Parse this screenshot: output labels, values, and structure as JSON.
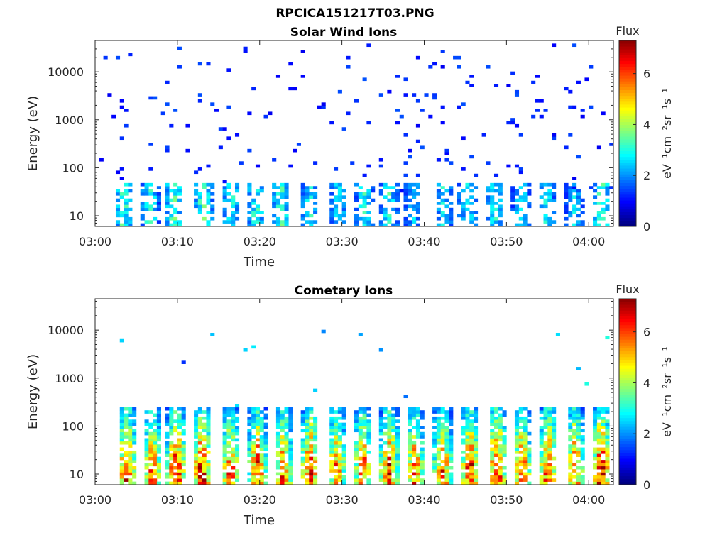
{
  "figure_title": "RPCICA151217T03.PNG",
  "colormap": [
    "#00007f",
    "#0000ff",
    "#007fff",
    "#00ffff",
    "#7fff7f",
    "#ffff00",
    "#ff7f00",
    "#ff0000",
    "#7f0000"
  ],
  "chart_data": [
    {
      "type": "heatmap",
      "title": "Solar Wind Ions",
      "xlabel": "Time",
      "ylabel": "Energy (eV)",
      "x_tick_labels": [
        "03:00",
        "03:10",
        "03:20",
        "03:30",
        "03:40",
        "03:50",
        "04:00"
      ],
      "x_ticks_min": [
        0,
        10,
        20,
        30,
        40,
        50,
        60
      ],
      "xlim_min": [
        0,
        63
      ],
      "y_scale": "log",
      "y_tick_labels": [
        "10",
        "100",
        "1000",
        "10000"
      ],
      "y_ticks": [
        10,
        100,
        1000,
        10000
      ],
      "ylim": [
        6,
        45000
      ],
      "colorbar": {
        "title": "Flux",
        "label": "eV⁻¹cm⁻²sr⁻¹s⁻¹",
        "ticks": [
          0,
          2,
          4,
          6
        ],
        "tick_labels": [
          "0",
          "2",
          "4",
          "6"
        ],
        "range": [
          0,
          7.3
        ]
      },
      "bursts": [
        {
          "t": 3.2,
          "level": 3.2
        },
        {
          "t": 6.4,
          "level": 3.0
        },
        {
          "t": 9.3,
          "level": 3.4
        },
        {
          "t": 12.9,
          "level": 3.3
        },
        {
          "t": 16.3,
          "level": 3.0
        },
        {
          "t": 19.3,
          "level": 3.1
        },
        {
          "t": 22.4,
          "level": 3.2
        },
        {
          "t": 25.9,
          "level": 2.8
        },
        {
          "t": 29.4,
          "level": 2.6
        },
        {
          "t": 32.5,
          "level": 2.9
        },
        {
          "t": 35.5,
          "level": 2.9
        },
        {
          "t": 38.4,
          "level": 2.4
        },
        {
          "t": 42.1,
          "level": 2.7
        },
        {
          "t": 45.0,
          "level": 2.8
        },
        {
          "t": 48.3,
          "level": 2.9
        },
        {
          "t": 51.5,
          "level": 2.6
        },
        {
          "t": 54.6,
          "level": 2.8
        },
        {
          "t": 58.0,
          "level": 2.5
        },
        {
          "t": 61.3,
          "level": 3.3
        }
      ],
      "background": {
        "e_min": 30,
        "e_max": 40000,
        "level_min": 0.8,
        "level_max": 1.5
      }
    },
    {
      "type": "heatmap",
      "title": "Cometary Ions",
      "xlabel": "Time",
      "ylabel": "Energy (eV)",
      "x_tick_labels": [
        "03:00",
        "03:10",
        "03:20",
        "03:30",
        "03:40",
        "03:50",
        "04:00"
      ],
      "x_ticks_min": [
        0,
        10,
        20,
        30,
        40,
        50,
        60
      ],
      "xlim_min": [
        0,
        63
      ],
      "y_scale": "log",
      "y_tick_labels": [
        "10",
        "100",
        "1000",
        "10000"
      ],
      "y_ticks": [
        10,
        100,
        1000,
        10000
      ],
      "ylim": [
        6,
        45000
      ],
      "colorbar": {
        "title": "Flux",
        "label": "eV⁻¹cm⁻²sr⁻¹s⁻¹",
        "ticks": [
          0,
          2,
          4,
          6
        ],
        "tick_labels": [
          "0",
          "2",
          "4",
          "6"
        ],
        "range": [
          0,
          7.3
        ]
      },
      "bursts": [
        {
          "t": 3.6,
          "level": 6.4
        },
        {
          "t": 6.7,
          "level": 5.7
        },
        {
          "t": 9.6,
          "level": 6.6
        },
        {
          "t": 12.7,
          "level": 6.6
        },
        {
          "t": 16.2,
          "level": 5.9
        },
        {
          "t": 19.5,
          "level": 6.1
        },
        {
          "t": 22.6,
          "level": 5.8
        },
        {
          "t": 25.9,
          "level": 6.3
        },
        {
          "t": 29.1,
          "level": 5.7
        },
        {
          "t": 32.3,
          "level": 5.9
        },
        {
          "t": 35.5,
          "level": 6.2
        },
        {
          "t": 38.6,
          "level": 5.8
        },
        {
          "t": 42.0,
          "level": 5.9
        },
        {
          "t": 45.3,
          "level": 6.4
        },
        {
          "t": 48.6,
          "level": 6.5
        },
        {
          "t": 51.6,
          "level": 6.0
        },
        {
          "t": 54.8,
          "level": 6.1
        },
        {
          "t": 58.1,
          "level": 5.9
        },
        {
          "t": 61.3,
          "level": 6.6
        }
      ],
      "background": {
        "e_min": 150,
        "e_max": 10000,
        "level_min": 1.2,
        "level_max": 3.0
      }
    }
  ]
}
